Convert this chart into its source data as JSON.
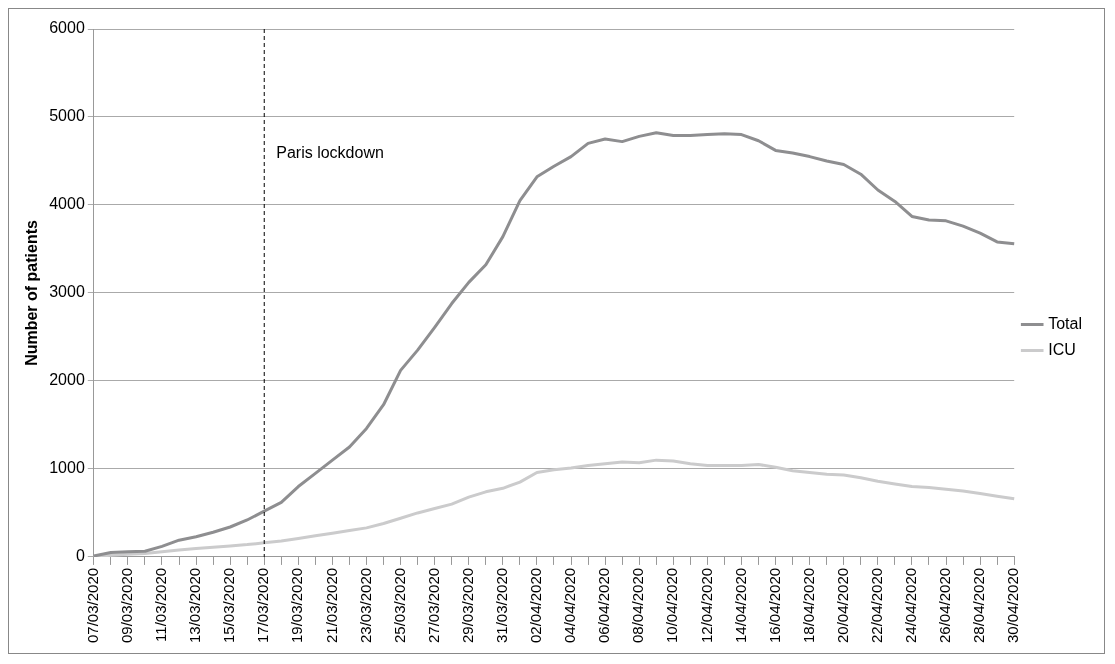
{
  "chart_data": {
    "type": "line",
    "categories": [
      "07/03/2020",
      null,
      "09/03/2020",
      null,
      "11/03/2020",
      null,
      "13/03/2020",
      null,
      "15/03/2020",
      null,
      "17/03/2020",
      null,
      "19/03/2020",
      null,
      "21/03/2020",
      null,
      "23/03/2020",
      null,
      "25/03/2020",
      null,
      "27/03/2020",
      null,
      "29/03/2020",
      null,
      "31/03/2020",
      null,
      "02/04/2020",
      null,
      "04/04/2020",
      null,
      "06/04/2020",
      null,
      "08/04/2020",
      null,
      "10/04/2020",
      null,
      "12/04/2020",
      null,
      "14/04/2020",
      null,
      "16/04/2020",
      null,
      "18/04/2020",
      null,
      "20/04/2020",
      null,
      "22/04/2020",
      null,
      "24/04/2020",
      null,
      "26/04/2020",
      null,
      "28/04/2020",
      null,
      "30/04/2020"
    ],
    "series": [
      {
        "name": "Total",
        "color": "#8e8e90",
        "values": [
          10,
          50,
          60,
          65,
          120,
          190,
          230,
          280,
          340,
          420,
          520,
          620,
          800,
          950,
          1100,
          1250,
          1460,
          1730,
          2120,
          2350,
          2610,
          2880,
          3120,
          3320,
          3640,
          4050,
          4320,
          4440,
          4550,
          4700,
          4750,
          4720,
          4780,
          4820,
          4790,
          4790,
          4800,
          4810,
          4800,
          4730,
          4620,
          4590,
          4550,
          4500,
          4460,
          4350,
          4170,
          4040,
          3870,
          3830,
          3820,
          3760,
          3680,
          3580,
          3560
        ]
      },
      {
        "name": "ICU",
        "color": "#cbcbcc",
        "values": [
          0,
          20,
          30,
          40,
          60,
          80,
          95,
          110,
          125,
          140,
          160,
          180,
          210,
          240,
          270,
          300,
          330,
          380,
          440,
          500,
          550,
          600,
          680,
          740,
          780,
          850,
          960,
          990,
          1010,
          1040,
          1060,
          1080,
          1070,
          1100,
          1090,
          1060,
          1040,
          1040,
          1040,
          1050,
          1020,
          980,
          960,
          940,
          930,
          900,
          860,
          830,
          800,
          790,
          770,
          750,
          720,
          690,
          660
        ]
      }
    ],
    "ylabel": "Number of patients",
    "ylim": [
      0,
      6000
    ],
    "yticks": [
      0,
      1000,
      2000,
      3000,
      4000,
      5000,
      6000
    ],
    "ref_lines": [
      {
        "axis": "x",
        "value": "17/03/2020",
        "label": "Paris lockdown",
        "color": "#000000",
        "line_style": "dashed"
      }
    ],
    "grid": "y",
    "legend": "right",
    "marker": "none",
    "line_style": "solid"
  }
}
